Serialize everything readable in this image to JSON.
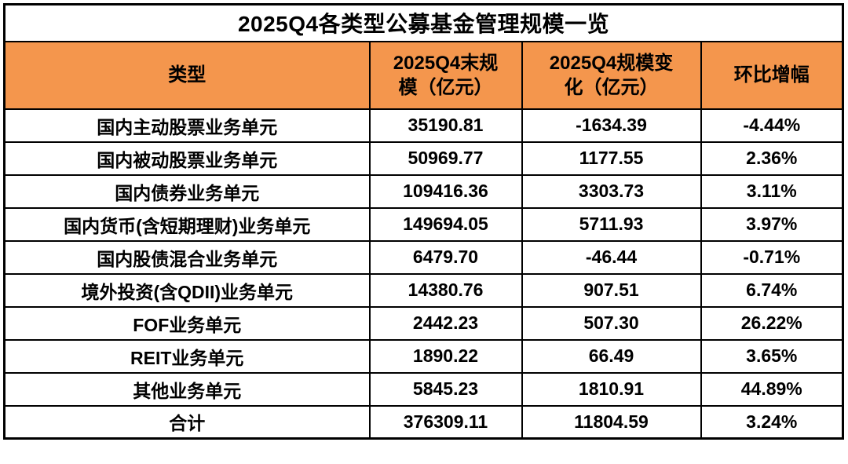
{
  "title": "2025Q4各类型公募基金管理规模一览",
  "colors": {
    "header_bg": "#F4964D",
    "border": "#000000",
    "text": "#000000",
    "row_bg": "#ffffff"
  },
  "table": {
    "headers": [
      {
        "label": "类型",
        "lines": [
          "类型"
        ]
      },
      {
        "label": "2025Q4末规模（亿元）",
        "lines": [
          "2025Q4末规",
          "模（亿元）"
        ]
      },
      {
        "label": "2025Q4规模变化（亿元）",
        "lines": [
          "2025Q4规模变",
          "化（亿元）"
        ]
      },
      {
        "label": "环比增幅",
        "lines": [
          "环比增幅"
        ]
      }
    ],
    "rows": [
      [
        "国内主动股票业务单元",
        "35190.81",
        "-1634.39",
        "-4.44%"
      ],
      [
        "国内被动股票业务单元",
        "50969.77",
        "1177.55",
        "2.36%"
      ],
      [
        "国内债券业务单元",
        "109416.36",
        "3303.73",
        "3.11%"
      ],
      [
        "国内货币(含短期理财)业务单元",
        "149694.05",
        "5711.93",
        "3.97%"
      ],
      [
        "国内股债混合业务单元",
        "6479.70",
        "-46.44",
        "-0.71%"
      ],
      [
        "境外投资(含QDII)业务单元",
        "14380.76",
        "907.51",
        "6.74%"
      ],
      [
        "FOF业务单元",
        "2442.23",
        "507.30",
        "26.22%"
      ],
      [
        "REIT业务单元",
        "1890.22",
        "66.49",
        "3.65%"
      ],
      [
        "其他业务单元",
        "5845.23",
        "1810.91",
        "44.89%"
      ],
      [
        "合计",
        "376309.11",
        "11804.59",
        "3.24%"
      ]
    ]
  },
  "chart_data": {
    "type": "table",
    "title": "2025Q4各类型公募基金管理规模一览",
    "columns": [
      "类型",
      "2025Q4末规模（亿元）",
      "2025Q4规模变化（亿元）",
      "环比增幅"
    ],
    "rows": [
      {
        "type": "国内主动股票业务单元",
        "scale_end": 35190.81,
        "scale_change": -1634.39,
        "qoq_growth": "-4.44%"
      },
      {
        "type": "国内被动股票业务单元",
        "scale_end": 50969.77,
        "scale_change": 1177.55,
        "qoq_growth": "2.36%"
      },
      {
        "type": "国内债券业务单元",
        "scale_end": 109416.36,
        "scale_change": 3303.73,
        "qoq_growth": "3.11%"
      },
      {
        "type": "国内货币(含短期理财)业务单元",
        "scale_end": 149694.05,
        "scale_change": 5711.93,
        "qoq_growth": "3.97%"
      },
      {
        "type": "国内股债混合业务单元",
        "scale_end": 6479.7,
        "scale_change": -46.44,
        "qoq_growth": "-0.71%"
      },
      {
        "type": "境外投资(含QDII)业务单元",
        "scale_end": 14380.76,
        "scale_change": 907.51,
        "qoq_growth": "6.74%"
      },
      {
        "type": "FOF业务单元",
        "scale_end": 2442.23,
        "scale_change": 507.3,
        "qoq_growth": "26.22%"
      },
      {
        "type": "REIT业务单元",
        "scale_end": 1890.22,
        "scale_change": 66.49,
        "qoq_growth": "3.65%"
      },
      {
        "type": "其他业务单元",
        "scale_end": 5845.23,
        "scale_change": 1810.91,
        "qoq_growth": "44.89%"
      },
      {
        "type": "合计",
        "scale_end": 376309.11,
        "scale_change": 11804.59,
        "qoq_growth": "3.24%"
      }
    ]
  }
}
